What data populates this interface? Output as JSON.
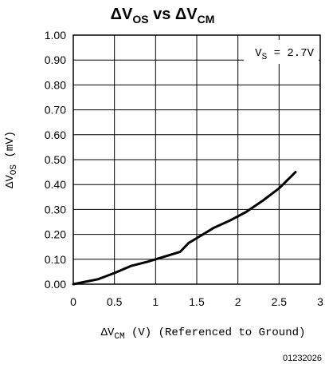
{
  "chart_data": {
    "type": "line",
    "title": {
      "prefix": "ΔV",
      "prefix_sub": "OS",
      "middle": " vs ΔV",
      "suffix_sub": "CM"
    },
    "xlabel": {
      "prefix": "ΔV",
      "sub": "CM",
      "suffix": " (V) (Referenced to Ground)"
    },
    "ylabel": {
      "prefix": "ΔV",
      "sub": "OS",
      "suffix": " (mV)"
    },
    "annotation": {
      "prefix": "V",
      "sub": "S",
      "suffix": " = 2.7V"
    },
    "figure_id": "01232026",
    "xlim": [
      0,
      3
    ],
    "ylim": [
      0,
      1
    ],
    "x_ticks": [
      0,
      0.5,
      1,
      1.5,
      2,
      2.5,
      3
    ],
    "x_tick_labels": [
      "0",
      "0.5",
      "1",
      "1.5",
      "2",
      "2.5",
      "3"
    ],
    "y_ticks": [
      0,
      0.1,
      0.2,
      0.3,
      0.4,
      0.5,
      0.6,
      0.7,
      0.8,
      0.9,
      1.0
    ],
    "y_tick_labels": [
      "0.00",
      "0.10",
      "0.20",
      "0.30",
      "0.40",
      "0.50",
      "0.60",
      "0.70",
      "0.80",
      "0.90",
      "1.00"
    ],
    "grid": true,
    "series": [
      {
        "x": [
          0,
          0.15,
          0.3,
          0.5,
          0.7,
          0.9,
          1.1,
          1.3,
          1.4,
          1.55,
          1.7,
          1.9,
          2.1,
          2.3,
          2.5,
          2.7
        ],
        "y": [
          0,
          0.01,
          0.02,
          0.045,
          0.073,
          0.09,
          0.11,
          0.13,
          0.165,
          0.195,
          0.225,
          0.255,
          0.29,
          0.335,
          0.385,
          0.45
        ],
        "color": "#000000"
      }
    ]
  }
}
